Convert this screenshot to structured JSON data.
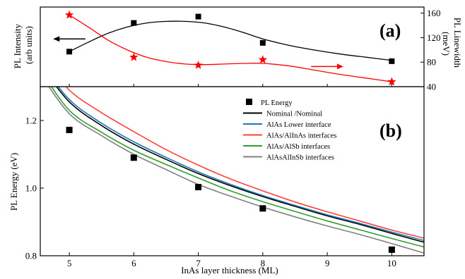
{
  "chart_data": [
    {
      "panel": "(a)",
      "type": "scatter",
      "xlim": [
        4.55,
        10.5
      ],
      "ylabel_left": "PL Intensity\n(arb units)",
      "ylabel_right": "PL Linewidth\n(meV)",
      "y_right_lim": [
        40,
        170
      ],
      "y_right_ticks": [
        40,
        80,
        120,
        160
      ],
      "series": [
        {
          "axis": "left",
          "marker": "square",
          "color": "#000000",
          "fit_color": "#000000",
          "x": [
            5,
            6,
            7,
            8,
            10
          ],
          "y": [
            0.44,
            0.8,
            0.88,
            0.55,
            0.32
          ],
          "fit": {
            "x": [
              5.0,
              5.3,
              5.6,
              5.9,
              6.2,
              6.5,
              6.8,
              7.1,
              7.4,
              7.7,
              8.0,
              8.4,
              8.8,
              9.2,
              9.6,
              10.0
            ],
            "y": [
              0.44,
              0.56,
              0.67,
              0.75,
              0.8,
              0.82,
              0.82,
              0.8,
              0.75,
              0.68,
              0.6,
              0.52,
              0.46,
              0.41,
              0.37,
              0.33
            ]
          }
        },
        {
          "axis": "right",
          "marker": "star",
          "color": "#ff0000",
          "fit_color": "#ff0000",
          "x": [
            5,
            6,
            7,
            8,
            10
          ],
          "y": [
            157,
            88,
            75,
            84,
            48
          ],
          "fit": {
            "x": [
              5.0,
              5.3,
              5.6,
              5.9,
              6.2,
              6.5,
              6.8,
              7.1,
              7.4,
              7.7,
              8.0,
              8.4,
              8.8,
              9.2,
              9.6,
              10.0
            ],
            "y": [
              157,
              137,
              116,
              100,
              88,
              81,
              77,
              76,
              77,
              78,
              78,
              74,
              67,
              60,
              54,
              48
            ]
          }
        }
      ],
      "arrows": [
        {
          "direction": "left",
          "x_from": 5.25,
          "x_to": 4.75,
          "axis": "left",
          "y": 0.6,
          "color": "#000000"
        },
        {
          "direction": "right",
          "x_from": 8.75,
          "x_to": 9.25,
          "axis": "right",
          "y": 73,
          "color": "#ff0000"
        }
      ]
    },
    {
      "panel": "(b)",
      "type": "line",
      "xlabel": "InAs layer thickness (ML)",
      "ylabel": "PL Energy (eV)",
      "xlim": [
        4.55,
        10.5
      ],
      "ylim": [
        0.8,
        1.3
      ],
      "xticks": [
        5,
        6,
        7,
        8,
        9,
        10
      ],
      "yticks": [
        0.8,
        1.0,
        1.2
      ],
      "ytick_labels": [
        "0.8",
        "1.0",
        "1.2"
      ],
      "legend": "top-right",
      "points": {
        "name": "PL Energy",
        "marker": "square",
        "color": "#000000",
        "x": [
          5,
          6,
          7,
          8,
          10
        ],
        "y": [
          1.172,
          1.09,
          1.003,
          0.94,
          0.818
        ]
      },
      "x": [
        4.55,
        5.0,
        5.5,
        6.0,
        6.5,
        7.0,
        7.5,
        8.0,
        8.5,
        9.0,
        9.5,
        10.0,
        10.5
      ],
      "series": [
        {
          "name": "Nominal /Nominal",
          "color": "#000000",
          "values": [
            1.365,
            1.255,
            1.185,
            1.13,
            1.085,
            1.043,
            1.007,
            0.975,
            0.946,
            0.918,
            0.893,
            0.866,
            0.84
          ]
        },
        {
          "name": "AlAs Lower interface",
          "color": "#1f77b4",
          "values": [
            1.372,
            1.262,
            1.192,
            1.137,
            1.091,
            1.048,
            1.011,
            0.978,
            0.949,
            0.921,
            0.896,
            0.87,
            0.845
          ]
        },
        {
          "name": "AlAs/AlInAs interfaces",
          "color": "#ff4136",
          "values": [
            1.395,
            1.29,
            1.223,
            1.167,
            1.114,
            1.068,
            1.027,
            0.992,
            0.959,
            0.93,
            0.903,
            0.876,
            0.852
          ]
        },
        {
          "name": "AlAs/AlSb interfaces",
          "color": "#2ca02c",
          "values": [
            1.35,
            1.23,
            1.165,
            1.112,
            1.07,
            1.03,
            0.992,
            0.96,
            0.931,
            0.903,
            0.877,
            0.851,
            0.826
          ]
        },
        {
          "name": "AlAsAlInSb interfaces",
          "color": "#808080",
          "values": [
            1.338,
            1.22,
            1.155,
            1.1,
            1.055,
            1.011,
            0.976,
            0.944,
            0.915,
            0.888,
            0.863,
            0.836,
            0.808
          ]
        }
      ]
    }
  ]
}
